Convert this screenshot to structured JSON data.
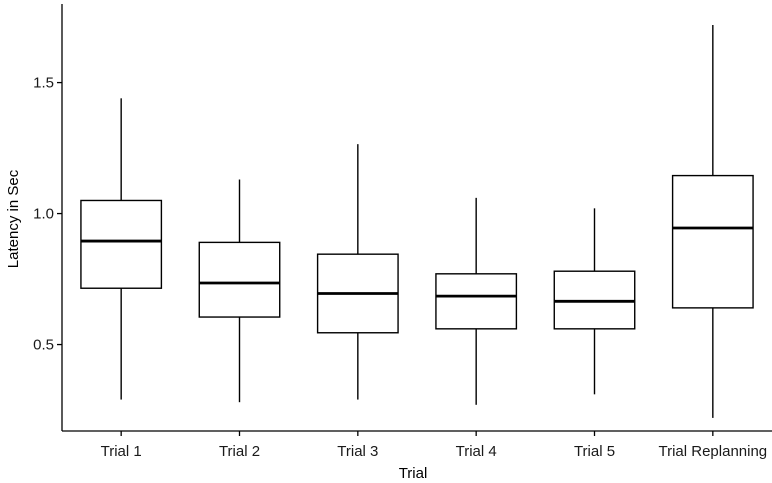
{
  "chart_data": {
    "type": "boxplot",
    "title": "",
    "xlabel": "Trial",
    "ylabel": "Latency in Sec",
    "ylim": [
      0.17,
      1.8
    ],
    "yticks": [
      0.5,
      1.0,
      1.5
    ],
    "ytick_labels": [
      "0.5",
      "1.0",
      "1.5"
    ],
    "grid": false,
    "categories": [
      "Trial 1",
      "Trial 2",
      "Trial 3",
      "Trial 4",
      "Trial 5",
      "Trial Replanning"
    ],
    "boxes": [
      {
        "category": "Trial 1",
        "whisker_low": 0.29,
        "q1": 0.715,
        "median": 0.895,
        "q3": 1.05,
        "whisker_high": 1.44
      },
      {
        "category": "Trial 2",
        "whisker_low": 0.28,
        "q1": 0.605,
        "median": 0.735,
        "q3": 0.89,
        "whisker_high": 1.13
      },
      {
        "category": "Trial 3",
        "whisker_low": 0.29,
        "q1": 0.545,
        "median": 0.695,
        "q3": 0.845,
        "whisker_high": 1.265
      },
      {
        "category": "Trial 4",
        "whisker_low": 0.27,
        "q1": 0.56,
        "median": 0.685,
        "q3": 0.77,
        "whisker_high": 1.06
      },
      {
        "category": "Trial 5",
        "whisker_low": 0.31,
        "q1": 0.56,
        "median": 0.665,
        "q3": 0.78,
        "whisker_high": 1.02
      },
      {
        "category": "Trial Replanning",
        "whisker_low": 0.22,
        "q1": 0.64,
        "median": 0.945,
        "q3": 1.145,
        "whisker_high": 1.72
      }
    ],
    "colors": {
      "line": "#000000",
      "fill": "#ffffff",
      "text": "#1a1a1a"
    }
  }
}
